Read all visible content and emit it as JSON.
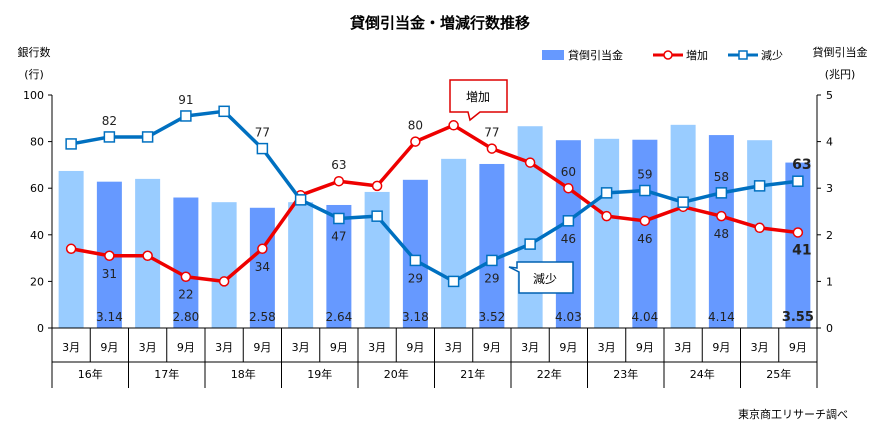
{
  "chart_data": {
    "type": "bar+line",
    "title": "貸倒引当金・増減行数推移",
    "ylabel_left": [
      "銀行数",
      "(行)"
    ],
    "ylabel_right": [
      "貸倒引当金",
      "(兆円)"
    ],
    "ylim_left": [
      0,
      100
    ],
    "yticks_left": [
      0,
      20,
      40,
      60,
      80,
      100
    ],
    "ylim_right": [
      0,
      5
    ],
    "yticks_right": [
      0,
      1,
      2,
      3,
      4,
      5
    ],
    "months": [
      "3月",
      "9月"
    ],
    "years": [
      "16年",
      "17年",
      "18年",
      "19年",
      "20年",
      "21年",
      "22年",
      "23年",
      "24年",
      "25年"
    ],
    "legend": {
      "placement": "top-right",
      "items": [
        "貸倒引当金",
        "増加",
        "減少"
      ]
    },
    "grid": false,
    "series": [
      {
        "name": "貸倒引当金",
        "axis": "right",
        "type": "bar",
        "colors": {
          "march": "#99ccff",
          "september": "#6699ff"
        },
        "values": [
          3.37,
          3.14,
          3.2,
          2.8,
          2.7,
          2.58,
          2.7,
          2.64,
          2.92,
          3.18,
          3.63,
          3.52,
          4.33,
          4.03,
          4.06,
          4.04,
          4.36,
          4.14,
          4.03,
          3.55
        ],
        "labels": [
          "",
          "3.14",
          "",
          "2.80",
          "",
          "2.58",
          "",
          "2.64",
          "",
          "3.18",
          "",
          "3.52",
          "",
          "4.03",
          "",
          "4.04",
          "",
          "4.14",
          "",
          "3.55"
        ]
      },
      {
        "name": "増加",
        "axis": "left",
        "type": "line",
        "color": "#ee0000",
        "values": [
          34,
          31,
          31,
          22,
          20,
          34,
          57,
          63,
          61,
          80,
          87,
          77,
          71,
          60,
          48,
          46,
          52,
          48,
          43,
          41
        ],
        "labels": [
          "",
          "31",
          "",
          "22",
          "",
          "34",
          "",
          "63",
          "",
          "80",
          "",
          "77",
          "",
          "60",
          "",
          "46",
          "",
          "48",
          "",
          "41"
        ]
      },
      {
        "name": "減少",
        "axis": "left",
        "type": "line",
        "color": "#0070c0",
        "values": [
          79,
          82,
          82,
          91,
          93,
          77,
          55,
          47,
          48,
          29,
          20,
          29,
          36,
          46,
          58,
          59,
          54,
          58,
          61,
          63
        ],
        "labels": [
          "",
          "82",
          "",
          "91",
          "",
          "77",
          "",
          "47",
          "",
          "29",
          "",
          "29",
          "",
          "46",
          "",
          "59",
          "",
          "58",
          "",
          "63"
        ]
      }
    ],
    "annotations": [
      "増加",
      "減少"
    ],
    "source": "東京商工リサーチ調べ"
  }
}
